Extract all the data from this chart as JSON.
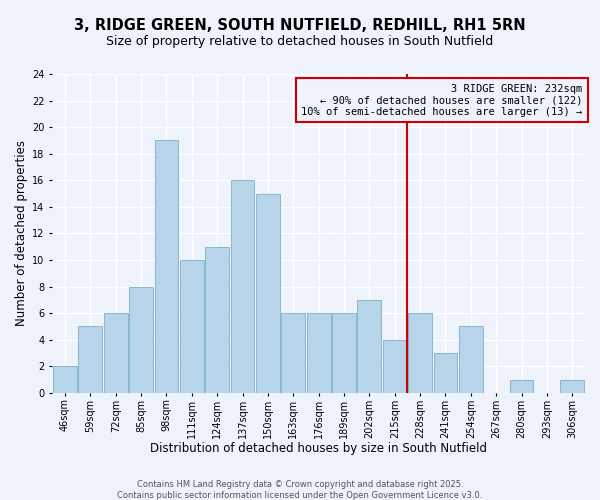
{
  "title": "3, RIDGE GREEN, SOUTH NUTFIELD, REDHILL, RH1 5RN",
  "subtitle": "Size of property relative to detached houses in South Nutfield",
  "xlabel": "Distribution of detached houses by size in South Nutfield",
  "ylabel": "Number of detached properties",
  "bin_labels": [
    "46sqm",
    "59sqm",
    "72sqm",
    "85sqm",
    "98sqm",
    "111sqm",
    "124sqm",
    "137sqm",
    "150sqm",
    "163sqm",
    "176sqm",
    "189sqm",
    "202sqm",
    "215sqm",
    "228sqm",
    "241sqm",
    "254sqm",
    "267sqm",
    "280sqm",
    "293sqm",
    "306sqm"
  ],
  "bin_edges": [
    46,
    59,
    72,
    85,
    98,
    111,
    124,
    137,
    150,
    163,
    176,
    189,
    202,
    215,
    228,
    241,
    254,
    267,
    280,
    293,
    306
  ],
  "bar_heights": [
    2,
    5,
    6,
    8,
    19,
    10,
    11,
    16,
    15,
    6,
    6,
    6,
    7,
    4,
    6,
    3,
    5,
    0,
    1,
    0,
    1
  ],
  "bar_color": "#b8d4e8",
  "bar_edge_color": "#7aafc8",
  "background_color": "#eef2fb",
  "grid_color": "#ffffff",
  "vline_x": 228,
  "vline_color": "#cc0000",
  "annotation_text": "3 RIDGE GREEN: 232sqm\n← 90% of detached houses are smaller (122)\n10% of semi-detached houses are larger (13) →",
  "annotation_box_color": "#cc0000",
  "footnote1": "Contains HM Land Registry data © Crown copyright and database right 2025.",
  "footnote2": "Contains public sector information licensed under the Open Government Licence v3.0.",
  "ylim": [
    0,
    24
  ],
  "yticks": [
    0,
    2,
    4,
    6,
    8,
    10,
    12,
    14,
    16,
    18,
    20,
    22,
    24
  ],
  "title_fontsize": 10.5,
  "subtitle_fontsize": 9,
  "axis_label_fontsize": 8.5,
  "tick_fontsize": 7,
  "annotation_fontsize": 7.5,
  "footnote_fontsize": 6
}
